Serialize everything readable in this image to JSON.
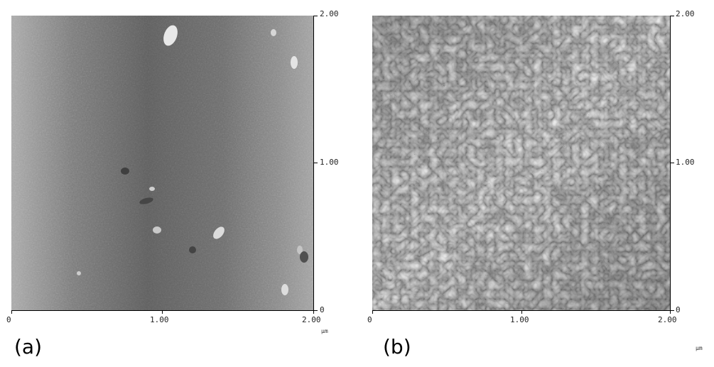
{
  "panels": [
    {
      "label": "(a)",
      "x_ticks": [
        "0",
        "1.00",
        "2.00"
      ],
      "y_ticks": [
        "2.00",
        "1.00",
        "0"
      ],
      "unit": "µm",
      "image": "afm-topography-smooth"
    },
    {
      "label": "(b)",
      "x_ticks": [
        "0",
        "1.00",
        "2.00"
      ],
      "y_ticks": [
        "2.00",
        "1.00",
        "0"
      ],
      "unit": "µm",
      "image": "afm-topography-rough"
    }
  ]
}
